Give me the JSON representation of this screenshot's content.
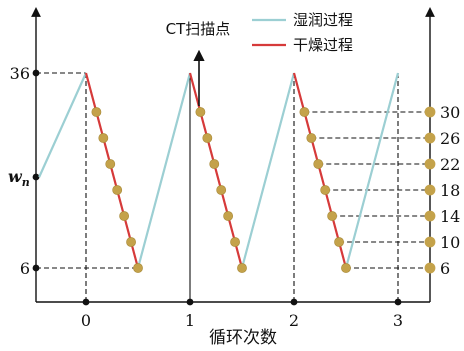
{
  "chart_data": {
    "type": "line",
    "xlabel": "循环次数",
    "ylabel": "",
    "xlim": [
      -0.45,
      3.3
    ],
    "ylim": [
      0,
      42
    ],
    "x_ticks": [
      0,
      1,
      2,
      3
    ],
    "x_tick_labels": [
      "0",
      "1",
      "2",
      "3"
    ],
    "left_y_ticks": [
      {
        "value": 36,
        "label": "36"
      },
      {
        "value": 6,
        "label": "6"
      }
    ],
    "wn_label": {
      "base": "w",
      "sub": "n",
      "value": 20
    },
    "right_y_ticks": [
      30,
      26,
      22,
      18,
      14,
      10,
      6
    ],
    "right_y_tick_labels": [
      "30",
      "26",
      "22",
      "18",
      "14",
      "10",
      "6"
    ],
    "series": [
      {
        "name": "湿润过程",
        "color": "#9ccfd3",
        "segments": [
          [
            [
              -0.45,
              20
            ],
            [
              0,
              36
            ]
          ],
          [
            [
              0.5,
              6
            ],
            [
              1,
              36
            ]
          ],
          [
            [
              1.5,
              6
            ],
            [
              2,
              36
            ]
          ],
          [
            [
              2.5,
              6
            ],
            [
              3,
              36
            ]
          ]
        ]
      },
      {
        "name": "干燥过程",
        "color": "#d63a3a",
        "segments": [
          [
            [
              0,
              36
            ],
            [
              0.5,
              6
            ]
          ],
          [
            [
              1,
              36
            ],
            [
              1.5,
              6
            ]
          ],
          [
            [
              2,
              36
            ],
            [
              2.5,
              6
            ]
          ]
        ]
      }
    ],
    "scan_points": {
      "name": "CT扫描点",
      "color": "#c4a24a",
      "cycles": [
        {
          "start": 0,
          "values": [
            30,
            26,
            22,
            18,
            14,
            10,
            6
          ]
        },
        {
          "start": 1,
          "values": [
            30,
            26,
            22,
            18,
            14,
            10,
            6
          ]
        },
        {
          "start": 2,
          "values": [
            30,
            26,
            22,
            18,
            14,
            10,
            6
          ]
        }
      ]
    },
    "legend": {
      "position": "top-right",
      "entries": [
        "湿润过程",
        "干燥过程"
      ]
    },
    "annotation": {
      "label": "CT扫描点"
    },
    "grid": false
  }
}
